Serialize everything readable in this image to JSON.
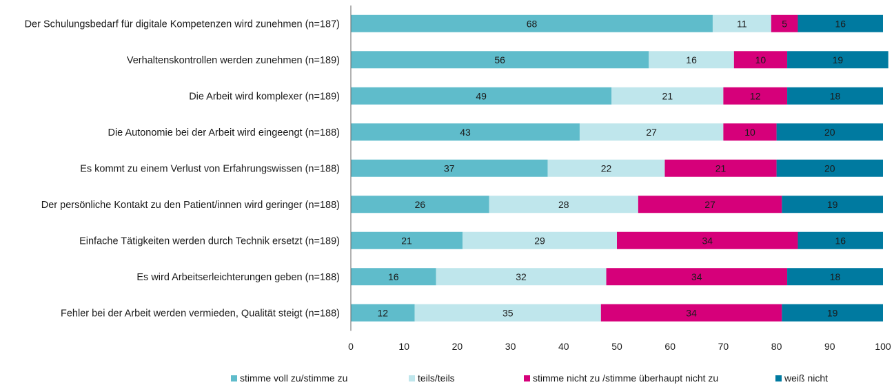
{
  "chart_data": {
    "type": "bar",
    "orientation": "horizontal",
    "stacked": true,
    "categories": [
      "Der Schulungsbedarf für digitale Kompetenzen wird zunehmen (n=187)",
      "Verhaltenskontrollen werden zunehmen (n=189)",
      "Die Arbeit wird komplexer (n=189)",
      "Die Autonomie bei der Arbeit wird eingeengt (n=188)",
      "Es kommt zu einem Verlust von Erfahrungswissen (n=188)",
      "Der persönliche Kontakt zu den Patient/innen wird geringer (n=188)",
      "Einfache Tätigkeiten werden durch Technik ersetzt (n=189)",
      "Es wird Arbeitserleichterungen geben (n=188)",
      "Fehler bei der Arbeit werden vermieden, Qualität steigt (n=188)"
    ],
    "series": [
      {
        "name": "stimme voll zu/stimme zu",
        "color": "#5fbccb",
        "values": [
          68,
          56,
          49,
          43,
          37,
          26,
          21,
          16,
          12
        ]
      },
      {
        "name": "teils/teils",
        "color": "#bfe6ec",
        "values": [
          11,
          16,
          21,
          27,
          22,
          28,
          29,
          32,
          35
        ]
      },
      {
        "name": "stimme nicht zu /stimme überhaupt nicht zu",
        "color": "#d6007a",
        "values": [
          5,
          10,
          12,
          10,
          21,
          27,
          34,
          34,
          34
        ]
      },
      {
        "name": "weiß nicht",
        "color": "#007aa0",
        "values": [
          16,
          19,
          18,
          20,
          20,
          19,
          16,
          18,
          19
        ]
      }
    ],
    "xlim": [
      0,
      100
    ],
    "xticks": [
      "0",
      "10",
      "20",
      "30",
      "40",
      "50",
      "60",
      "70",
      "80",
      "90",
      "100"
    ],
    "xlabel": "",
    "ylabel": "",
    "grid": false,
    "legend_position": "bottom"
  }
}
